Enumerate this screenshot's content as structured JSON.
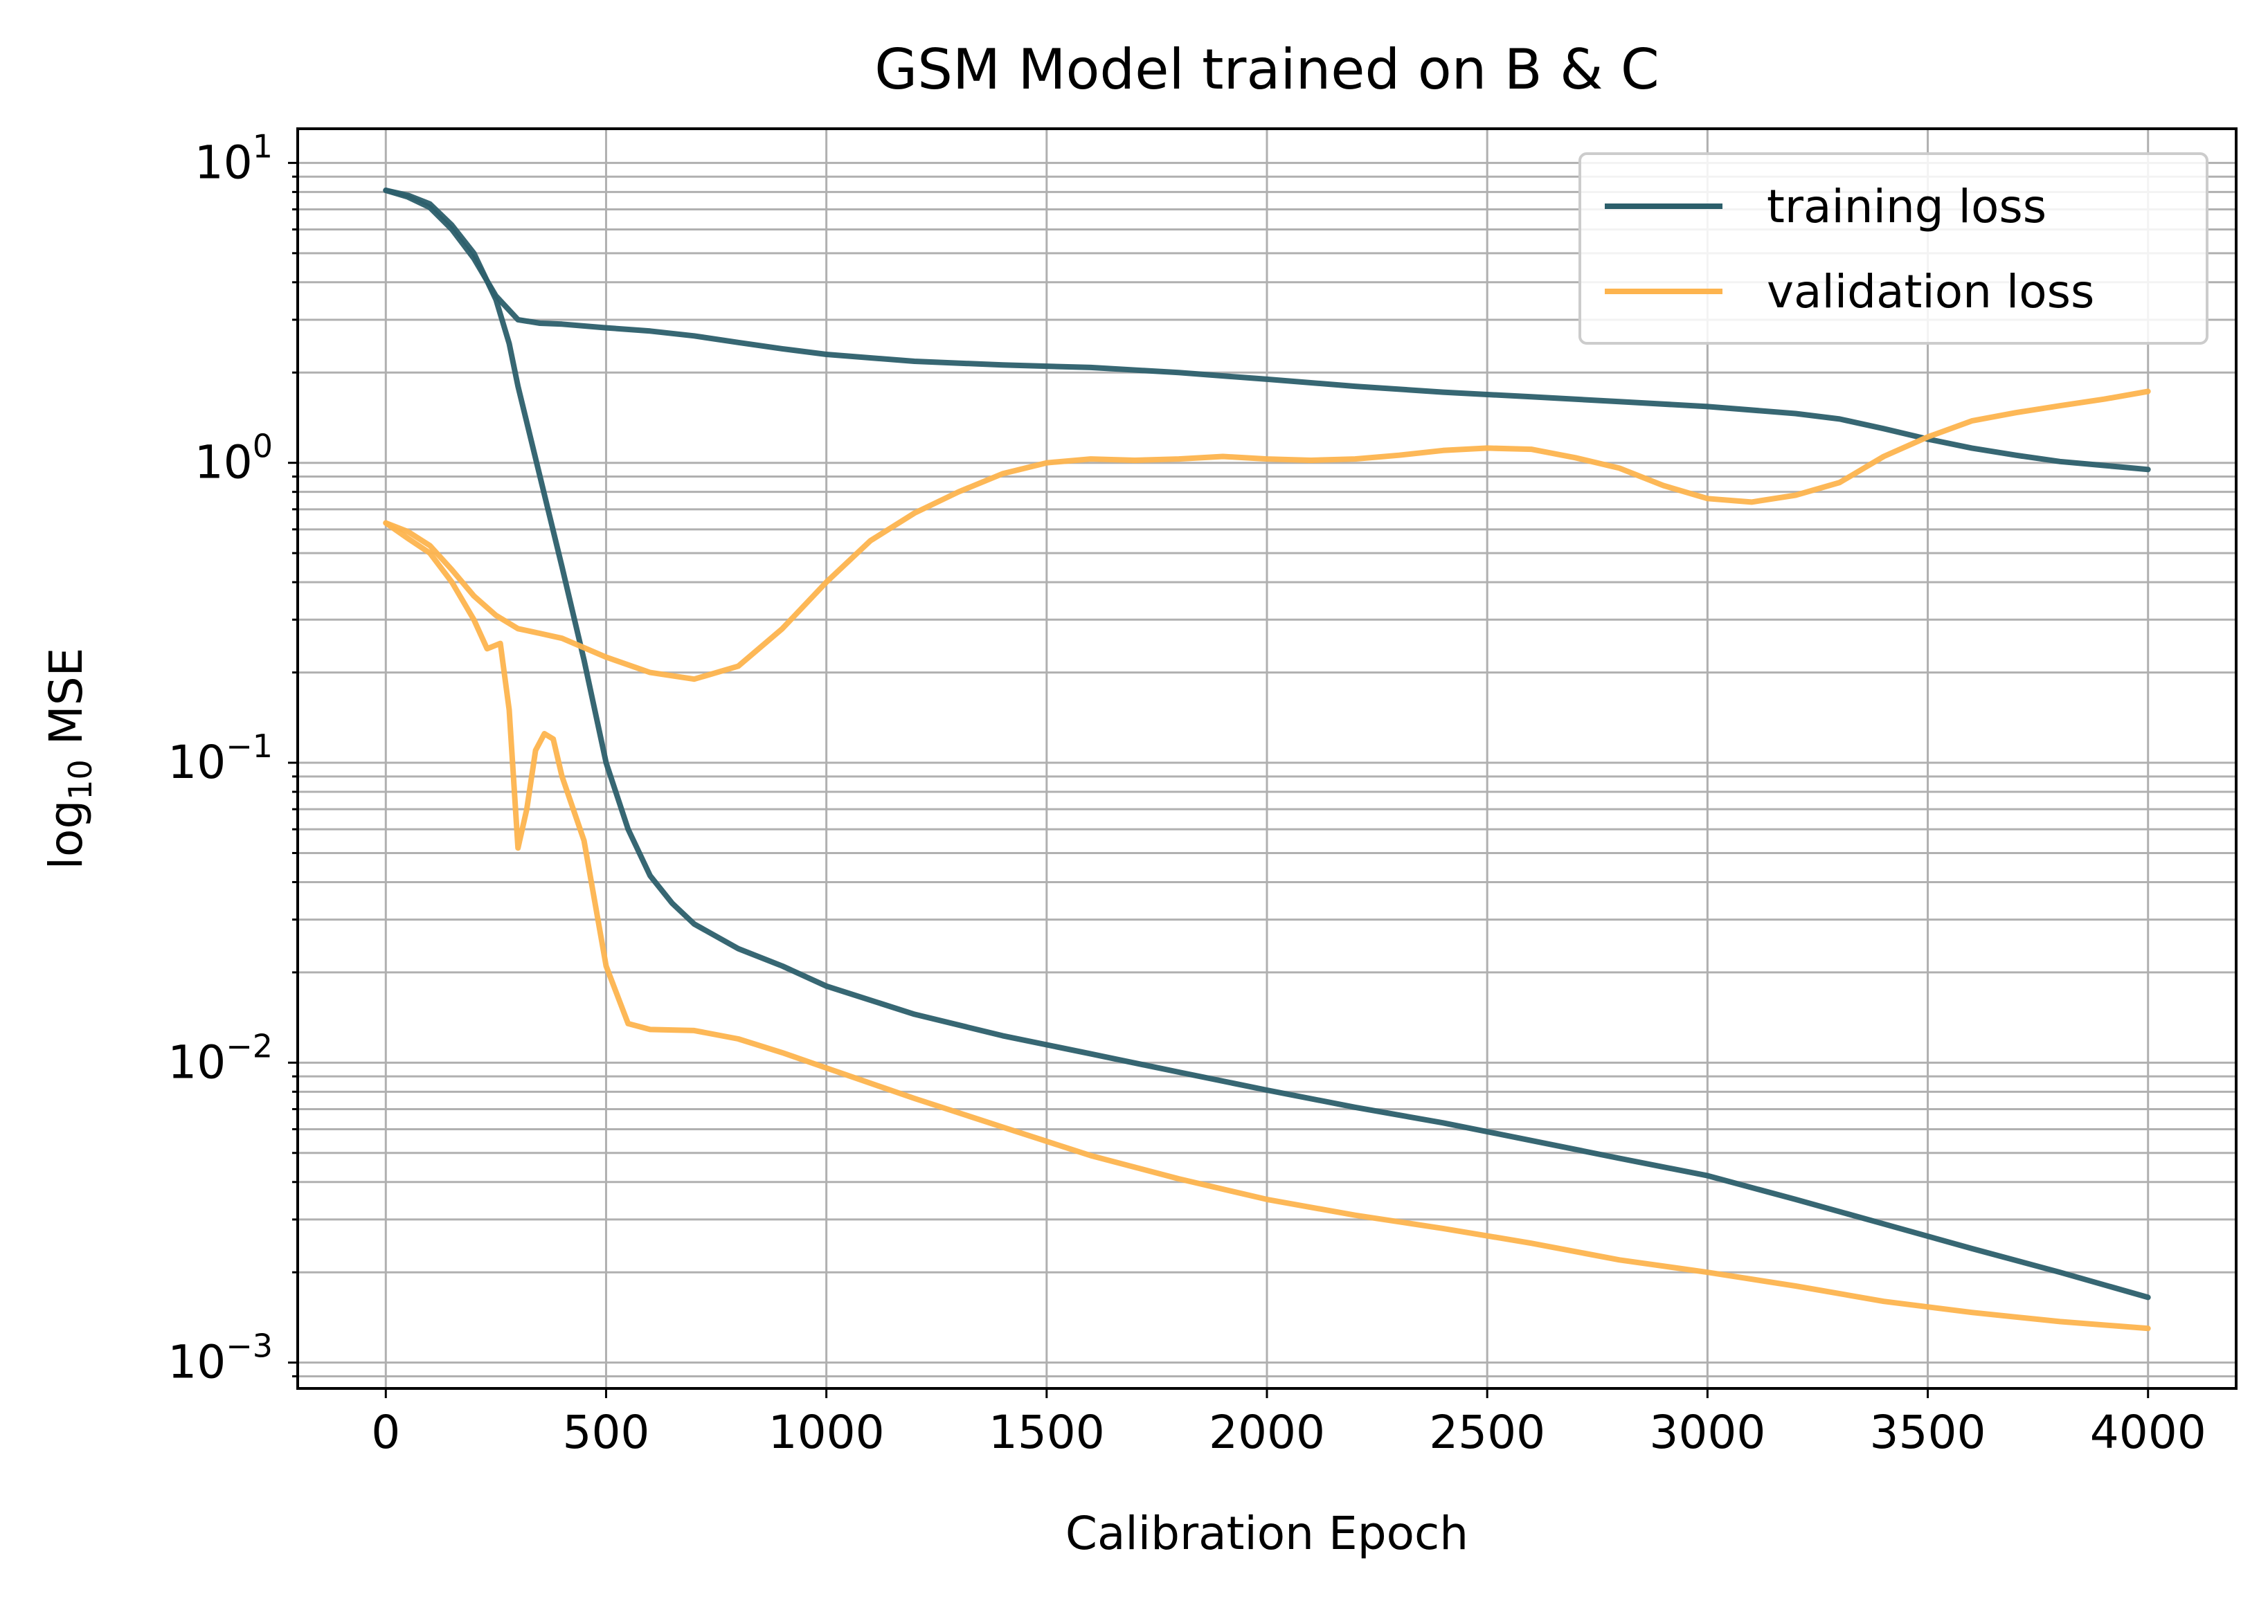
{
  "chart_data": {
    "type": "line",
    "title": "GSM Model trained on B & C",
    "xlabel": "Calibration Epoch",
    "ylabel_prefix": "log",
    "ylabel_subscript": "10",
    "ylabel_suffix": " MSE",
    "yscale": "log",
    "xlim": [
      -200,
      4200
    ],
    "ylim": [
      0.00082,
      13
    ],
    "grid": true,
    "grid_minor": true,
    "legend_position": "top-right",
    "x_ticks": [
      {
        "value": 0,
        "label": "0"
      },
      {
        "value": 500,
        "label": "500"
      },
      {
        "value": 1000,
        "label": "1000"
      },
      {
        "value": 1500,
        "label": "1500"
      },
      {
        "value": 2000,
        "label": "2000"
      },
      {
        "value": 2500,
        "label": "2500"
      },
      {
        "value": 3000,
        "label": "3000"
      },
      {
        "value": 3500,
        "label": "3500"
      },
      {
        "value": 4000,
        "label": "4000"
      }
    ],
    "y_ticks": [
      {
        "value": 10,
        "base": "10",
        "exp": "1"
      },
      {
        "value": 1,
        "base": "10",
        "exp": "0"
      },
      {
        "value": 0.1,
        "base": "10",
        "exp": "−1"
      },
      {
        "value": 0.01,
        "base": "10",
        "exp": "−2"
      },
      {
        "value": 0.001,
        "base": "10",
        "exp": "−3"
      }
    ],
    "series": [
      {
        "name": "training loss",
        "color": "#2c5f6b",
        "runs": [
          [
            [
              0,
              8.1
            ],
            [
              50,
              7.7
            ],
            [
              100,
              7.1
            ],
            [
              150,
              6.0
            ],
            [
              200,
              4.8
            ],
            [
              250,
              3.6
            ],
            [
              300,
              3.0
            ],
            [
              350,
              2.92
            ],
            [
              400,
              2.9
            ],
            [
              500,
              2.82
            ],
            [
              600,
              2.75
            ],
            [
              700,
              2.65
            ],
            [
              800,
              2.52
            ],
            [
              900,
              2.4
            ],
            [
              1000,
              2.3
            ],
            [
              1200,
              2.18
            ],
            [
              1400,
              2.12
            ],
            [
              1600,
              2.08
            ],
            [
              1800,
              2.0
            ],
            [
              2000,
              1.9
            ],
            [
              2200,
              1.8
            ],
            [
              2400,
              1.72
            ],
            [
              2600,
              1.66
            ],
            [
              2800,
              1.6
            ],
            [
              3000,
              1.54
            ],
            [
              3200,
              1.46
            ],
            [
              3300,
              1.4
            ],
            [
              3400,
              1.3
            ],
            [
              3500,
              1.2
            ],
            [
              3600,
              1.12
            ],
            [
              3700,
              1.06
            ],
            [
              3800,
              1.01
            ],
            [
              3900,
              0.98
            ],
            [
              4000,
              0.95
            ]
          ],
          [
            [
              0,
              8.1
            ],
            [
              50,
              7.8
            ],
            [
              100,
              7.3
            ],
            [
              150,
              6.2
            ],
            [
              200,
              5.0
            ],
            [
              250,
              3.5
            ],
            [
              280,
              2.5
            ],
            [
              300,
              1.8
            ],
            [
              350,
              0.9
            ],
            [
              400,
              0.45
            ],
            [
              450,
              0.22
            ],
            [
              500,
              0.1
            ],
            [
              550,
              0.06
            ],
            [
              600,
              0.042
            ],
            [
              650,
              0.034
            ],
            [
              700,
              0.029
            ],
            [
              800,
              0.024
            ],
            [
              900,
              0.021
            ],
            [
              1000,
              0.018
            ],
            [
              1200,
              0.0145
            ],
            [
              1400,
              0.0123
            ],
            [
              1600,
              0.0107
            ],
            [
              1800,
              0.0093
            ],
            [
              2000,
              0.0081
            ],
            [
              2200,
              0.0071
            ],
            [
              2400,
              0.0063
            ],
            [
              2600,
              0.0055
            ],
            [
              2800,
              0.0048
            ],
            [
              3000,
              0.0042
            ],
            [
              3200,
              0.0035
            ],
            [
              3400,
              0.0029
            ],
            [
              3600,
              0.0024
            ],
            [
              3800,
              0.002
            ],
            [
              4000,
              0.00165
            ]
          ]
        ]
      },
      {
        "name": "validation loss",
        "color": "#fdb44e",
        "runs": [
          [
            [
              0,
              0.63
            ],
            [
              50,
              0.59
            ],
            [
              100,
              0.53
            ],
            [
              150,
              0.44
            ],
            [
              200,
              0.36
            ],
            [
              250,
              0.31
            ],
            [
              300,
              0.28
            ],
            [
              350,
              0.27
            ],
            [
              400,
              0.26
            ],
            [
              500,
              0.225
            ],
            [
              600,
              0.2
            ],
            [
              700,
              0.19
            ],
            [
              800,
              0.21
            ],
            [
              900,
              0.28
            ],
            [
              1000,
              0.4
            ],
            [
              1100,
              0.55
            ],
            [
              1200,
              0.68
            ],
            [
              1300,
              0.8
            ],
            [
              1400,
              0.92
            ],
            [
              1500,
              1.0
            ],
            [
              1600,
              1.03
            ],
            [
              1700,
              1.02
            ],
            [
              1800,
              1.03
            ],
            [
              1900,
              1.05
            ],
            [
              2000,
              1.03
            ],
            [
              2100,
              1.02
            ],
            [
              2200,
              1.03
            ],
            [
              2300,
              1.06
            ],
            [
              2400,
              1.1
            ],
            [
              2500,
              1.12
            ],
            [
              2600,
              1.11
            ],
            [
              2700,
              1.04
            ],
            [
              2800,
              0.96
            ],
            [
              2900,
              0.84
            ],
            [
              3000,
              0.76
            ],
            [
              3100,
              0.74
            ],
            [
              3200,
              0.78
            ],
            [
              3300,
              0.86
            ],
            [
              3400,
              1.05
            ],
            [
              3500,
              1.22
            ],
            [
              3600,
              1.38
            ],
            [
              3700,
              1.47
            ],
            [
              3800,
              1.55
            ],
            [
              3900,
              1.63
            ],
            [
              4000,
              1.73
            ]
          ],
          [
            [
              0,
              0.63
            ],
            [
              50,
              0.56
            ],
            [
              100,
              0.5
            ],
            [
              150,
              0.4
            ],
            [
              200,
              0.3
            ],
            [
              230,
              0.24
            ],
            [
              260,
              0.25
            ],
            [
              280,
              0.15
            ],
            [
              300,
              0.052
            ],
            [
              320,
              0.07
            ],
            [
              340,
              0.11
            ],
            [
              360,
              0.125
            ],
            [
              380,
              0.12
            ],
            [
              400,
              0.09
            ],
            [
              450,
              0.055
            ],
            [
              500,
              0.021
            ],
            [
              550,
              0.0135
            ],
            [
              600,
              0.0129
            ],
            [
              700,
              0.0128
            ],
            [
              800,
              0.012
            ],
            [
              900,
              0.0108
            ],
            [
              1000,
              0.0096
            ],
            [
              1200,
              0.0076
            ],
            [
              1400,
              0.0061
            ],
            [
              1600,
              0.0049
            ],
            [
              1800,
              0.0041
            ],
            [
              2000,
              0.0035
            ],
            [
              2200,
              0.0031
            ],
            [
              2400,
              0.0028
            ],
            [
              2600,
              0.0025
            ],
            [
              2800,
              0.0022
            ],
            [
              3000,
              0.002
            ],
            [
              3200,
              0.0018
            ],
            [
              3400,
              0.0016
            ],
            [
              3600,
              0.00147
            ],
            [
              3800,
              0.00137
            ],
            [
              4000,
              0.0013
            ]
          ]
        ]
      }
    ]
  }
}
